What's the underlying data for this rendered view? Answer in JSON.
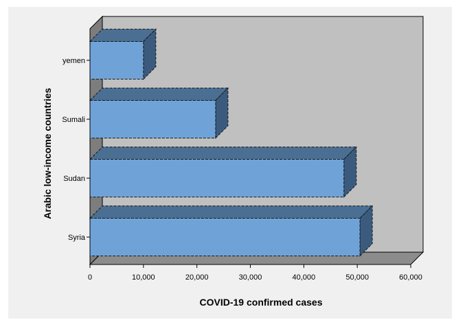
{
  "chart_data": {
    "type": "bar",
    "orientation": "horizontal",
    "style": "3d",
    "categories": [
      "yemen",
      "Sumali",
      "Sudan",
      "Syria"
    ],
    "values": [
      10000,
      23500,
      47500,
      50500
    ],
    "xlabel": "COVID-19 confirmed cases",
    "ylabel": "Arabic low-income countries",
    "xlim": [
      0,
      60000
    ],
    "xticks": [
      "0",
      "10,000",
      "20,000",
      "30,000",
      "40,000",
      "50,000",
      "60,000"
    ],
    "grid": false,
    "legend": "none",
    "colors": {
      "bar_front": "#6fa3d8",
      "bar_top": "#4a6f93",
      "bar_side": "#3b5b7e",
      "wall_back": "#c0c0c0",
      "wall_side": "#7d7d7d",
      "floor": "#8c8c8c",
      "frame_bg": "#f0f0f0"
    }
  }
}
